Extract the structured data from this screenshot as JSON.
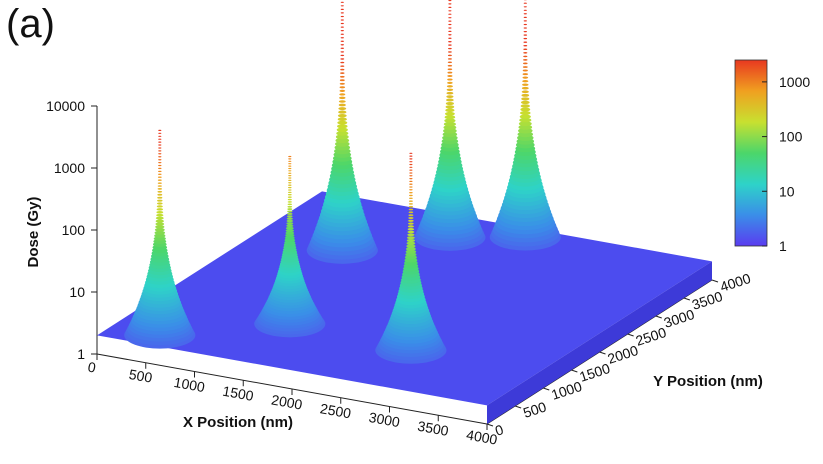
{
  "panel_label": "(a)",
  "chart_data": {
    "type": "surface3d",
    "xlabel": "X Position (nm)",
    "ylabel": "Y Position (nm)",
    "zlabel": "Dose (Gy)",
    "x_ticks": [
      "0",
      "500",
      "1000",
      "1500",
      "2000",
      "2500",
      "3000",
      "3500",
      "4000"
    ],
    "y_ticks": [
      "0",
      "500",
      "1000",
      "1500",
      "2000",
      "2500",
      "3000",
      "3500",
      "4000"
    ],
    "z_ticks": [
      "1",
      "10",
      "100",
      "1000",
      "10000"
    ],
    "xlim": [
      0,
      4000
    ],
    "ylim": [
      0,
      4000
    ],
    "zlim": [
      1,
      10000
    ],
    "z_scale": "log",
    "baseline_dose": 2,
    "colorbar": {
      "ticks": [
        "1",
        "10",
        "100",
        "1000"
      ],
      "scale": "log",
      "colors": [
        "#5a3cf0",
        "#3a8ee8",
        "#2ed3c8",
        "#4cd66a",
        "#c8e030",
        "#f0a020",
        "#e83820"
      ]
    },
    "peaks": [
      {
        "x": 500,
        "y": 250,
        "dose": 4000
      },
      {
        "x": 1400,
        "y": 1000,
        "dose": 1000
      },
      {
        "x": 900,
        "y": 2800,
        "dose": 20000
      },
      {
        "x": 2700,
        "y": 900,
        "dose": 3000
      },
      {
        "x": 1600,
        "y": 3500,
        "dose": 15000
      },
      {
        "x": 2200,
        "y": 3800,
        "dose": 20000
      }
    ]
  }
}
